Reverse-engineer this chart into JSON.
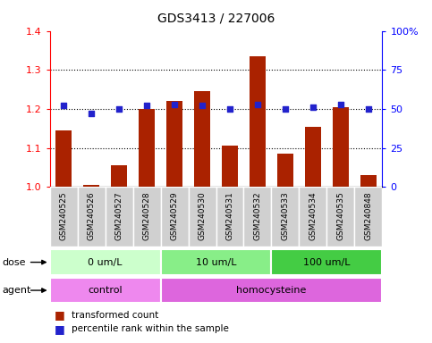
{
  "title": "GDS3413 / 227006",
  "samples": [
    "GSM240525",
    "GSM240526",
    "GSM240527",
    "GSM240528",
    "GSM240529",
    "GSM240530",
    "GSM240531",
    "GSM240532",
    "GSM240533",
    "GSM240534",
    "GSM240535",
    "GSM240848"
  ],
  "transformed_count": [
    1.145,
    1.005,
    1.055,
    1.2,
    1.22,
    1.245,
    1.105,
    1.335,
    1.085,
    1.155,
    1.205,
    1.03
  ],
  "percentile_rank": [
    52,
    47,
    50,
    52,
    53,
    52,
    50,
    53,
    50,
    51,
    53,
    50
  ],
  "bar_color": "#aa2200",
  "dot_color": "#2222cc",
  "ylim_left": [
    1.0,
    1.4
  ],
  "ylim_right": [
    0,
    100
  ],
  "yticks_left": [
    1.0,
    1.1,
    1.2,
    1.3,
    1.4
  ],
  "yticks_right": [
    0,
    25,
    50,
    75,
    100
  ],
  "ytick_labels_right": [
    "0",
    "25",
    "50",
    "75",
    "100%"
  ],
  "dose_groups": [
    {
      "label": "0 um/L",
      "start": 0,
      "end": 4,
      "color": "#ccffcc"
    },
    {
      "label": "10 um/L",
      "start": 4,
      "end": 8,
      "color": "#88ee88"
    },
    {
      "label": "100 um/L",
      "start": 8,
      "end": 12,
      "color": "#44cc44"
    }
  ],
  "agent_groups": [
    {
      "label": "control",
      "start": 0,
      "end": 4,
      "color": "#ee88ee"
    },
    {
      "label": "homocysteine",
      "start": 4,
      "end": 12,
      "color": "#dd66dd"
    }
  ],
  "legend_items": [
    {
      "label": "transformed count",
      "color": "#aa2200"
    },
    {
      "label": "percentile rank within the sample",
      "color": "#2222cc"
    }
  ],
  "bg_color": "#ffffff",
  "plot_bg": "#ffffff",
  "dose_label": "dose",
  "agent_label": "agent"
}
